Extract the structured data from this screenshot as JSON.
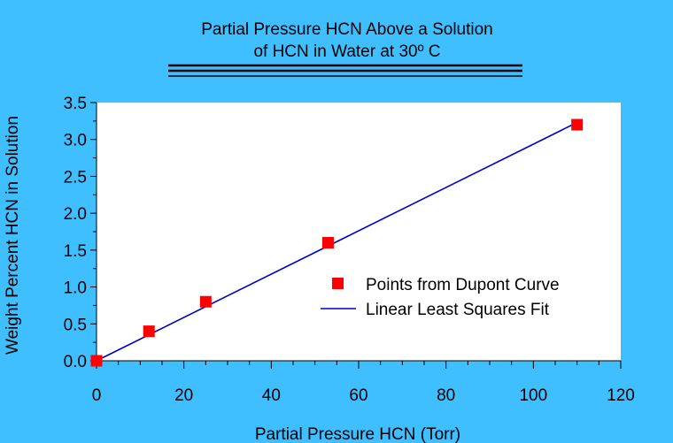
{
  "colors": {
    "background": "#3fbfff",
    "plot_area": "#ffffff",
    "points": "#ff0000",
    "fit_line": "#0000cc",
    "text": "#000000"
  },
  "chart_data": {
    "type": "scatter",
    "title_lines": [
      "Partial Pressure HCN Above a Solution",
      "of HCN in Water at 30º C"
    ],
    "xlabel": "Partial Pressure HCN (Torr)",
    "ylabel": "Weight Percent HCN in Solution",
    "xlim": [
      0,
      120
    ],
    "ylim": [
      0,
      3.5
    ],
    "x_ticks": [
      "0",
      "20",
      "40",
      "60",
      "80",
      "100",
      "120"
    ],
    "y_ticks": [
      "0.0",
      "0.5",
      "1.0",
      "1.5",
      "2.0",
      "2.5",
      "3.0",
      "3.5"
    ],
    "grid": false,
    "legend_position": "right-middle",
    "series": [
      {
        "name": "Points from Dupont Curve",
        "kind": "markers",
        "marker": "square",
        "x": [
          0,
          12,
          25,
          53,
          110
        ],
        "y": [
          0.0,
          0.4,
          0.8,
          1.6,
          3.2
        ]
      },
      {
        "name": "Linear Least Squares Fit",
        "kind": "line",
        "x": [
          0,
          110
        ],
        "y": [
          0.0,
          3.23
        ]
      }
    ]
  }
}
